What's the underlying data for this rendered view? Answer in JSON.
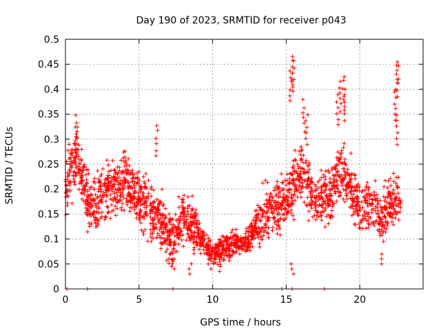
{
  "chart_data": {
    "type": "scatter",
    "title": "Day 190 of 2023, SRMTID for receiver p043",
    "xlabel": "GPS time / hours",
    "ylabel": "SRMTID / TECUs",
    "xlim": [
      0,
      24.3
    ],
    "ylim": [
      0,
      0.5
    ],
    "x_ticks": [
      0,
      5,
      10,
      15,
      20
    ],
    "x_tick_labels": [
      "0",
      "5",
      "10",
      "15",
      "20"
    ],
    "y_ticks": [
      0,
      0.05,
      0.1,
      0.15,
      0.2,
      0.25,
      0.3,
      0.35,
      0.4,
      0.45,
      0.5
    ],
    "y_tick_labels": [
      "0",
      "0.05",
      "0.1",
      "0.15",
      "0.2",
      "0.25",
      "0.3",
      "0.35",
      "0.4",
      "0.45",
      "0.5"
    ],
    "grid": true,
    "marker": "+",
    "color": "#ff0000",
    "series": [
      {
        "name": "SRMTID",
        "trend": [
          [
            0.0,
            0.2
          ],
          [
            0.3,
            0.24
          ],
          [
            0.7,
            0.25
          ],
          [
            1.0,
            0.24
          ],
          [
            1.5,
            0.18
          ],
          [
            2.0,
            0.17
          ],
          [
            2.5,
            0.19
          ],
          [
            3.0,
            0.21
          ],
          [
            3.5,
            0.2
          ],
          [
            4.0,
            0.21
          ],
          [
            4.5,
            0.21
          ],
          [
            5.0,
            0.18
          ],
          [
            5.5,
            0.17
          ],
          [
            6.0,
            0.15
          ],
          [
            6.5,
            0.13
          ],
          [
            7.0,
            0.1
          ],
          [
            7.5,
            0.11
          ],
          [
            8.0,
            0.14
          ],
          [
            8.5,
            0.13
          ],
          [
            9.0,
            0.11
          ],
          [
            9.5,
            0.09
          ],
          [
            10.0,
            0.07
          ],
          [
            10.5,
            0.08
          ],
          [
            11.0,
            0.085
          ],
          [
            11.5,
            0.09
          ],
          [
            12.0,
            0.095
          ],
          [
            12.5,
            0.1
          ],
          [
            13.0,
            0.13
          ],
          [
            13.5,
            0.15
          ],
          [
            14.0,
            0.16
          ],
          [
            14.5,
            0.17
          ],
          [
            15.0,
            0.17
          ],
          [
            15.5,
            0.21
          ],
          [
            16.0,
            0.24
          ],
          [
            16.5,
            0.21
          ],
          [
            17.0,
            0.18
          ],
          [
            17.5,
            0.18
          ],
          [
            18.0,
            0.19
          ],
          [
            18.5,
            0.23
          ],
          [
            19.0,
            0.22
          ],
          [
            19.5,
            0.19
          ],
          [
            20.0,
            0.16
          ],
          [
            20.5,
            0.17
          ],
          [
            21.0,
            0.15
          ],
          [
            21.5,
            0.14
          ],
          [
            22.0,
            0.17
          ],
          [
            22.5,
            0.18
          ],
          [
            22.8,
            0.18
          ]
        ],
        "spread": 0.05,
        "sample_count": 2200,
        "peaks": [
          [
            0.7,
            0.35
          ],
          [
            0.8,
            0.33
          ],
          [
            6.2,
            0.33
          ],
          [
            15.4,
            0.47
          ],
          [
            15.5,
            0.46
          ],
          [
            15.3,
            0.44
          ],
          [
            16.2,
            0.38
          ],
          [
            16.4,
            0.35
          ],
          [
            18.7,
            0.42
          ],
          [
            18.9,
            0.43
          ],
          [
            19.0,
            0.4
          ],
          [
            18.5,
            0.39
          ],
          [
            22.5,
            0.46
          ],
          [
            22.6,
            0.45
          ],
          [
            22.4,
            0.4
          ],
          [
            22.5,
            0.35
          ]
        ],
        "lows": [
          [
            7.3,
            0.04
          ],
          [
            8.5,
            0.03
          ],
          [
            9.8,
            0.04
          ],
          [
            10.5,
            0.035
          ],
          [
            15.4,
            0.03
          ],
          [
            21.5,
            0.05
          ]
        ],
        "zero_points": [
          0.1,
          1.5,
          7.3,
          14.7,
          15.4,
          17.6
        ]
      }
    ]
  }
}
